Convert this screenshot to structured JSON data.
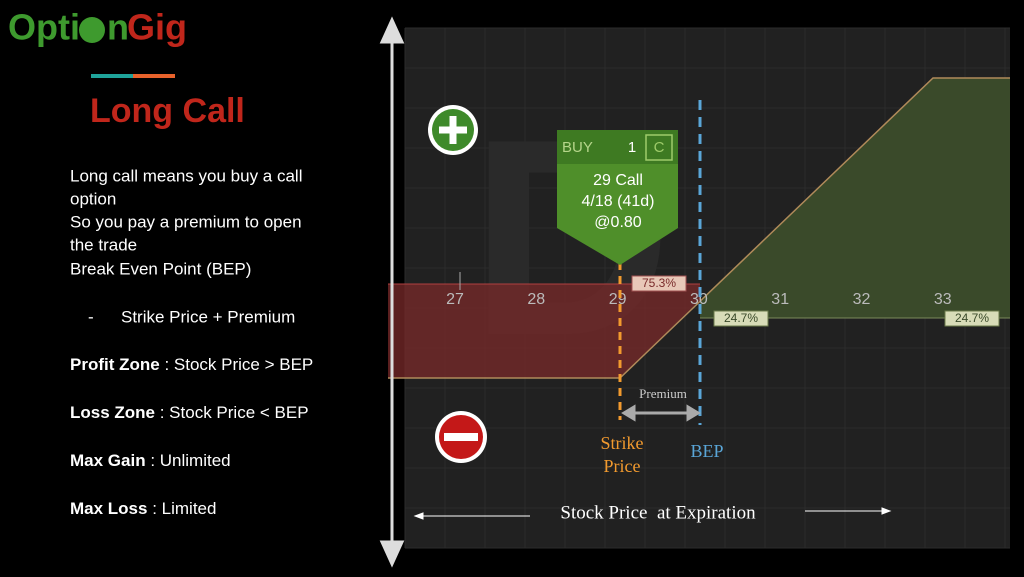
{
  "logo": {
    "left": "Opti",
    "middle": "n",
    "right": "Gig"
  },
  "title": "Long Call",
  "description": [
    "Long call means you buy a call",
    "option",
    "So you pay a premium to open",
    "the trade",
    "Break Even Point (BEP)"
  ],
  "bullet": {
    "marker": "-",
    "text": "Strike Price + Premium"
  },
  "facts": [
    {
      "label": "Profit Zone",
      "text": " : Stock Price > BEP"
    },
    {
      "label": "Loss Zone",
      "text": " : Stock Price < BEP"
    },
    {
      "label": "Max Gain",
      "text": " : Unlimited"
    },
    {
      "label": "Max Loss",
      "text": " : Limited"
    }
  ],
  "diagram": {
    "axis_ticks": [
      "27",
      "28",
      "29",
      "30",
      "31",
      "32",
      "33"
    ],
    "order": {
      "side": "BUY",
      "quantity": "1",
      "kind": "C",
      "contract": "29 Call",
      "expiry": "4/18 (41d)",
      "price": "@0.80"
    },
    "badges": [
      "75.3%",
      "24.7%",
      "24.7%"
    ],
    "premium_label": "Premium",
    "strike_label": [
      "Strike",
      "Price"
    ],
    "bep_label": "BEP",
    "x_axis_label": "Stock Price  at Expiration"
  }
}
